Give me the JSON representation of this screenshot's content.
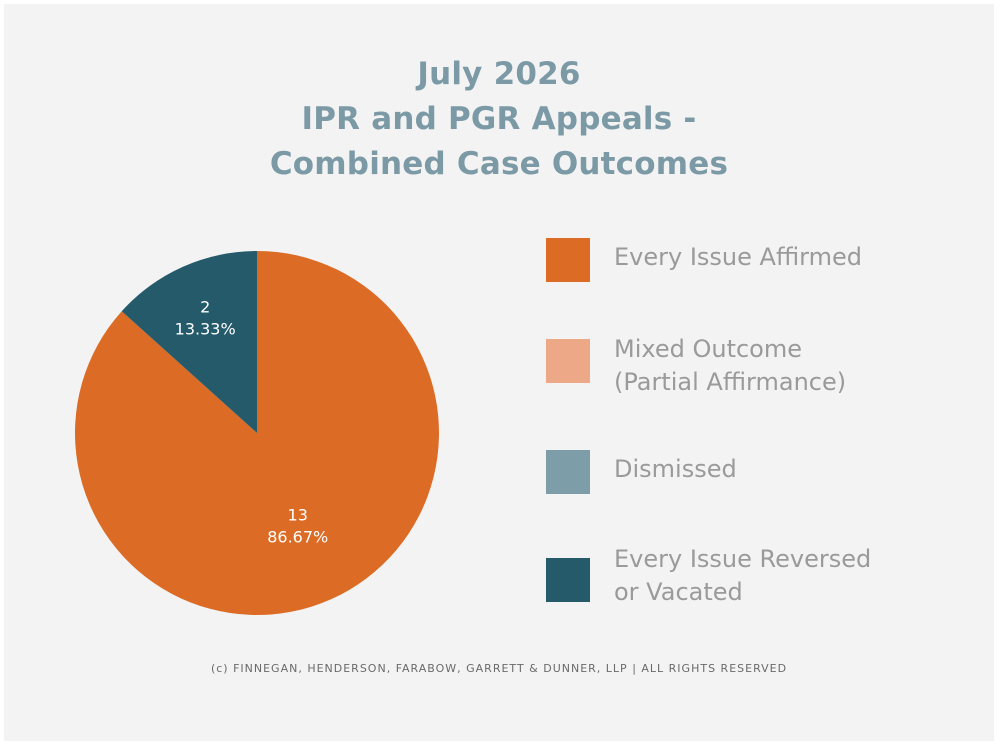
{
  "title_lines": [
    "July 2026",
    "IPR and PGR Appeals -",
    "Combined Case Outcomes"
  ],
  "footer": "(c) FINNEGAN, HENDERSON, FARABOW, GARRETT & DUNNER, LLP | ALL RIGHTS RESERVED",
  "colors": {
    "background": "#f3f3f3",
    "title": "#7b9aa6",
    "legend_text": "#9a9a9a",
    "every_issue_affirmed": "#dc6b25",
    "mixed_outcome": "#eda987",
    "dismissed": "#7d9da9",
    "every_issue_reversed": "#245a6a"
  },
  "legend": [
    {
      "lines": [
        "Every Issue Affirmed"
      ],
      "color": "#dc6b25"
    },
    {
      "lines": [
        "Mixed Outcome",
        "(Partial Affirmance)"
      ],
      "color": "#eda987"
    },
    {
      "lines": [
        "Dismissed"
      ],
      "color": "#7d9da9"
    },
    {
      "lines": [
        "Every Issue Reversed",
        "or Vacated"
      ],
      "color": "#245a6a"
    }
  ],
  "chart_data": {
    "type": "pie",
    "title": "July 2026 IPR and PGR Appeals - Combined Case Outcomes",
    "legend_position": "right",
    "slices": [
      {
        "label": "Every Issue Affirmed",
        "value": 13,
        "percent_label": "86.67%",
        "count_label": "13",
        "color": "#dc6b25"
      },
      {
        "label": "Mixed Outcome (Partial Affirmance)",
        "value": 0,
        "color": "#eda987"
      },
      {
        "label": "Dismissed",
        "value": 0,
        "color": "#7d9da9"
      },
      {
        "label": "Every Issue Reversed or Vacated",
        "value": 2,
        "percent_label": "13.33%",
        "count_label": "2",
        "color": "#245a6a"
      }
    ]
  }
}
